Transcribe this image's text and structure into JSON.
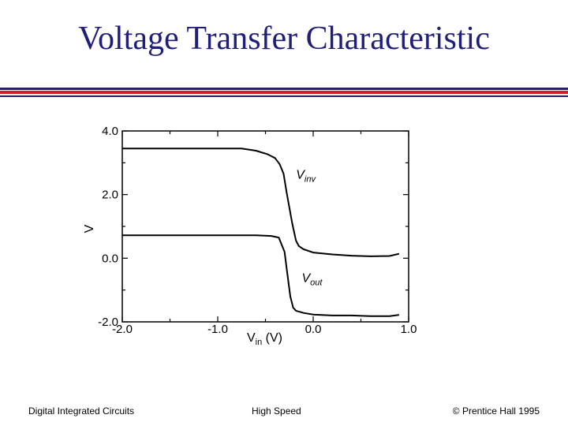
{
  "slide": {
    "title": "Voltage Transfer Characteristic"
  },
  "footer": {
    "left": "Digital Integrated Circuits",
    "center": "High Speed",
    "right": "© Prentice Hall 1995"
  },
  "chart_data": {
    "type": "line",
    "title": "",
    "xlabel": "V",
    "xlabel_sub": "in",
    "xlabel_unit": " (V)",
    "ylabel": "V",
    "xlim": [
      -2.0,
      1.0
    ],
    "ylim": [
      -2.0,
      4.0
    ],
    "x_ticks": [
      -2.0,
      -1.0,
      0.0,
      1.0
    ],
    "x_tick_labels": [
      "-2.0",
      "-1.0",
      "0.0",
      "1.0"
    ],
    "y_ticks": [
      -2.0,
      0.0,
      2.0,
      4.0
    ],
    "y_tick_labels": [
      "-2.0",
      "0.0",
      "2.0",
      "4.0"
    ],
    "grid": false,
    "legend": "none",
    "line_color": "#000000",
    "series": [
      {
        "name": "V",
        "name_sub": "inv",
        "label_at": [
          -0.18,
          2.5
        ],
        "x": [
          -2.0,
          -1.3,
          -0.75,
          -0.6,
          -0.48,
          -0.4,
          -0.35,
          -0.31,
          -0.28,
          -0.22,
          -0.18,
          -0.15,
          -0.1,
          0.0,
          0.2,
          0.4,
          0.6,
          0.8,
          0.9
        ],
        "y": [
          3.45,
          3.45,
          3.45,
          3.38,
          3.27,
          3.15,
          2.95,
          2.65,
          2.1,
          1.1,
          0.55,
          0.38,
          0.28,
          0.18,
          0.12,
          0.08,
          0.06,
          0.07,
          0.14
        ]
      },
      {
        "name": "V",
        "name_sub": "out",
        "label_at": [
          -0.12,
          -0.75
        ],
        "x": [
          -2.0,
          -1.3,
          -0.6,
          -0.44,
          -0.36,
          -0.3,
          -0.27,
          -0.24,
          -0.21,
          -0.18,
          -0.1,
          0.0,
          0.2,
          0.4,
          0.6,
          0.8,
          0.9
        ],
        "y": [
          0.72,
          0.72,
          0.72,
          0.7,
          0.65,
          0.2,
          -0.5,
          -1.2,
          -1.55,
          -1.65,
          -1.72,
          -1.77,
          -1.8,
          -1.8,
          -1.82,
          -1.82,
          -1.78
        ]
      }
    ]
  }
}
